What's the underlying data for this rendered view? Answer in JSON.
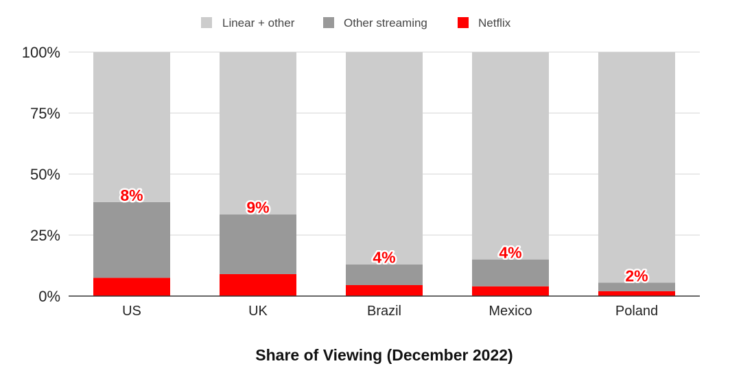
{
  "chart_data": {
    "type": "bar",
    "stacked": true,
    "categories": [
      "US",
      "UK",
      "Brazil",
      "Mexico",
      "Poland"
    ],
    "series": [
      {
        "name": "Netflix",
        "color": "#ff0000",
        "values": [
          7.5,
          9,
          4.5,
          4,
          2
        ]
      },
      {
        "name": "Other streaming",
        "color": "#999999",
        "values": [
          31,
          24.5,
          8.5,
          11,
          3.5
        ]
      },
      {
        "name": "Linear + other",
        "color": "#cccccc",
        "values": [
          61.5,
          66.5,
          87,
          85,
          94.5
        ]
      }
    ],
    "data_labels": [
      "8%",
      "9%",
      "4%",
      "4%",
      "2%"
    ],
    "legend": [
      "Linear + other",
      "Other streaming",
      "Netflix"
    ],
    "legend_position": "top-center",
    "ylim": [
      0,
      100
    ],
    "yticks": [
      "0%",
      "25%",
      "50%",
      "75%",
      "100%"
    ],
    "ytick_values": [
      0,
      25,
      50,
      75,
      100
    ],
    "xlabel": "Share of Viewing (December 2022)",
    "ylabel": "",
    "grid": true
  }
}
